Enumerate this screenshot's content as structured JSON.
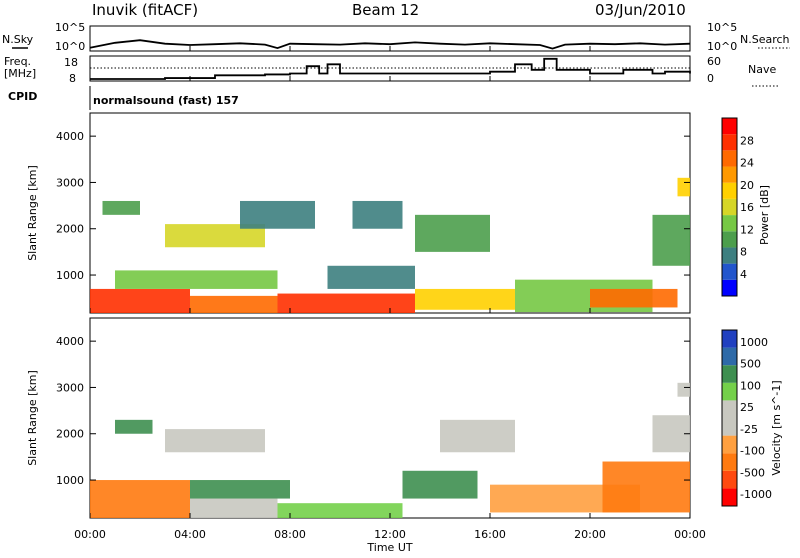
{
  "header": {
    "station": "Inuvik (fitACF)",
    "beam": "Beam 12",
    "date": "03/Jun/2010"
  },
  "colors": {
    "power_scale": [
      "#0000ff",
      "#2255cc",
      "#3d7f80",
      "#4c9e4c",
      "#76c844",
      "#d6d628",
      "#ffd000",
      "#ff9900",
      "#ff6a00",
      "#ff3000",
      "#ff0000"
    ],
    "velocity_scale": [
      "#ff0000",
      "#ff4a10",
      "#ff7a10",
      "#ffa040",
      "#c8c8c0",
      "#c8c8c0",
      "#74d04a",
      "#3e8f50",
      "#2e6aa8",
      "#2040c0"
    ],
    "line": "#000000"
  },
  "chart_data": [
    {
      "type": "line",
      "panel": "N.Sky / N.Search",
      "labels": {
        "left": "N.Sky",
        "right": "N.Search"
      },
      "left_ticks": [
        "10^5",
        "10^0"
      ],
      "right_ticks": [
        "10^5",
        "10^0"
      ],
      "x": [
        "00:00",
        "01:00",
        "02:00",
        "03:00",
        "04:00",
        "05:00",
        "06:00",
        "07:00",
        "07:30",
        "08:00",
        "09:00",
        "10:00",
        "11:00",
        "12:00",
        "13:00",
        "14:00",
        "15:00",
        "16:00",
        "17:00",
        "18:00",
        "18:30",
        "19:00",
        "20:00",
        "21:00",
        "22:00",
        "23:00",
        "24:00"
      ],
      "values": [
        0.3,
        1.4,
        2.0,
        1.2,
        0.9,
        1.1,
        1.3,
        1.0,
        0.2,
        1.2,
        1.1,
        1.0,
        1.3,
        1.1,
        1.5,
        1.2,
        1.0,
        1.3,
        1.1,
        0.9,
        0.1,
        1.0,
        1.2,
        1.1,
        1.3,
        1.0,
        1.2
      ]
    },
    {
      "type": "line",
      "panel": "Freq / Nave",
      "labels": {
        "left_top": "Freq.",
        "left_bottom": "[MHz]",
        "right": "Nave"
      },
      "left_ticks": [
        "18",
        "8"
      ],
      "right_ticks": [
        "60",
        "0"
      ],
      "x": [
        "00:00",
        "03:00",
        "05:00",
        "07:00",
        "08:00",
        "08:20",
        "08:40",
        "09:10",
        "09:30",
        "10:00",
        "12:00",
        "14:00",
        "15:30",
        "16:00",
        "17:00",
        "17:40",
        "18:10",
        "18:40",
        "19:00",
        "20:00",
        "21:20",
        "22:30",
        "23:00",
        "24:00"
      ],
      "freq_values": [
        8.0,
        8.5,
        10.0,
        10.5,
        11.0,
        11.0,
        15.0,
        11.0,
        16.0,
        11.0,
        11.0,
        11.0,
        11.0,
        12.0,
        16.0,
        13.0,
        19.0,
        13.0,
        13.0,
        11.0,
        13.0,
        11.0,
        12.0,
        11.0
      ],
      "nave_reference": 30
    },
    {
      "type": "heatmap",
      "title": "normalsound (fast) 157",
      "cpid_label": "CPID",
      "xlabel": "",
      "ylabel": "Slant Range [km]",
      "yticks": [
        "1000",
        "2000",
        "3000",
        "4000"
      ],
      "ylim": [
        180,
        4500
      ],
      "colorbar_label": "Power [dB]",
      "colorbar_ticks": [
        "4",
        "8",
        "12",
        "16",
        "20",
        "24",
        "28"
      ],
      "colorbar_range": [
        0,
        32
      ],
      "bands": [
        {
          "start": 0.0,
          "end": 4.0,
          "lower": 180,
          "upper": 700,
          "value": 28
        },
        {
          "start": 4.0,
          "end": 7.5,
          "lower": 180,
          "upper": 550,
          "value": 26
        },
        {
          "start": 1.0,
          "end": 7.5,
          "lower": 700,
          "upper": 1100,
          "value": 14
        },
        {
          "start": 3.0,
          "end": 7.0,
          "lower": 1600,
          "upper": 2100,
          "value": 16
        },
        {
          "start": 0.5,
          "end": 2.0,
          "lower": 2300,
          "upper": 2600,
          "value": 10
        },
        {
          "start": 7.5,
          "end": 13.0,
          "lower": 180,
          "upper": 600,
          "value": 28
        },
        {
          "start": 13.0,
          "end": 17.0,
          "lower": 250,
          "upper": 700,
          "value": 18
        },
        {
          "start": 9.5,
          "end": 13.0,
          "lower": 700,
          "upper": 1200,
          "value": 8
        },
        {
          "start": 13.0,
          "end": 16.0,
          "lower": 1500,
          "upper": 2300,
          "value": 10
        },
        {
          "start": 17.0,
          "end": 22.5,
          "lower": 200,
          "upper": 900,
          "value": 14
        },
        {
          "start": 20.0,
          "end": 23.5,
          "lower": 300,
          "upper": 700,
          "value": 26
        },
        {
          "start": 22.5,
          "end": 24.0,
          "lower": 1200,
          "upper": 2300,
          "value": 10
        },
        {
          "start": 23.5,
          "end": 24.0,
          "lower": 2700,
          "upper": 3100,
          "value": 20
        },
        {
          "start": 6.0,
          "end": 9.0,
          "lower": 2000,
          "upper": 2600,
          "value": 6
        },
        {
          "start": 10.5,
          "end": 12.5,
          "lower": 2000,
          "upper": 2600,
          "value": 6
        }
      ]
    },
    {
      "type": "heatmap",
      "xlabel": "Time UT",
      "ylabel": "Slant Range [km]",
      "xticks": [
        "00:00",
        "04:00",
        "08:00",
        "12:00",
        "16:00",
        "20:00",
        "00:00"
      ],
      "yticks": [
        "1000",
        "2000",
        "3000",
        "4000"
      ],
      "ylim": [
        180,
        4500
      ],
      "colorbar_label": "Velocity [m s^-1]",
      "colorbar_ticks": [
        "1000",
        "500",
        "100",
        "25",
        "-25",
        "-100",
        "-500",
        "-1000"
      ],
      "bands": [
        {
          "start": 0.0,
          "end": 4.0,
          "lower": 180,
          "upper": 1000,
          "value": -200
        },
        {
          "start": 4.0,
          "end": 7.5,
          "lower": 180,
          "upper": 600,
          "value": 10
        },
        {
          "start": 4.0,
          "end": 8.0,
          "lower": 600,
          "upper": 1000,
          "value": 250
        },
        {
          "start": 3.0,
          "end": 7.0,
          "lower": 1600,
          "upper": 2100,
          "value": 0
        },
        {
          "start": 7.5,
          "end": 12.5,
          "lower": 180,
          "upper": 500,
          "value": 60
        },
        {
          "start": 12.5,
          "end": 15.5,
          "lower": 600,
          "upper": 1200,
          "value": 300
        },
        {
          "start": 14.0,
          "end": 17.0,
          "lower": 1600,
          "upper": 2300,
          "value": 0
        },
        {
          "start": 16.0,
          "end": 22.0,
          "lower": 300,
          "upper": 900,
          "value": -60
        },
        {
          "start": 20.5,
          "end": 24.0,
          "lower": 300,
          "upper": 1400,
          "value": -400
        },
        {
          "start": 22.5,
          "end": 24.0,
          "lower": 1600,
          "upper": 2400,
          "value": 0
        },
        {
          "start": 1.0,
          "end": 2.5,
          "lower": 2000,
          "upper": 2300,
          "value": 120
        },
        {
          "start": 23.5,
          "end": 24.0,
          "lower": 2800,
          "upper": 3100,
          "value": 0
        }
      ]
    }
  ]
}
